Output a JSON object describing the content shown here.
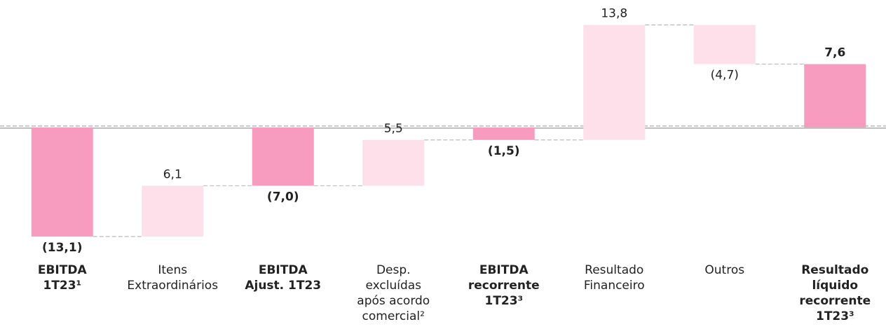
{
  "chart_data": {
    "type": "waterfall",
    "categories": [
      [
        "EBITDA",
        "1T23¹"
      ],
      [
        "Itens",
        "Extraordinários"
      ],
      [
        "EBITDA",
        "Ajust. 1T23"
      ],
      [
        "Desp.",
        "excluídas",
        "após acordo",
        "comercial²"
      ],
      [
        "EBITDA",
        "recorrente",
        "1T23³"
      ],
      [
        "Resultado",
        "Financeiro"
      ],
      [
        "Outros"
      ],
      [
        "Resultado",
        "líquido",
        "recorrente",
        "1T23³"
      ]
    ],
    "values": [
      -13.1,
      6.1,
      -7.0,
      5.5,
      -1.5,
      13.8,
      -4.7,
      7.6
    ],
    "value_labels": [
      "(13,1)",
      "6,1",
      "(7,0)",
      "5,5",
      "(1,5)",
      "13,8",
      "(4,7)",
      "7,6"
    ],
    "measure": [
      "absolute",
      "relative",
      "absolute",
      "relative",
      "absolute",
      "relative",
      "relative",
      "absolute"
    ],
    "colors": {
      "absolute": "#f89cbf",
      "relative": "#fde0ea"
    },
    "ylim": [
      -15,
      15
    ]
  }
}
